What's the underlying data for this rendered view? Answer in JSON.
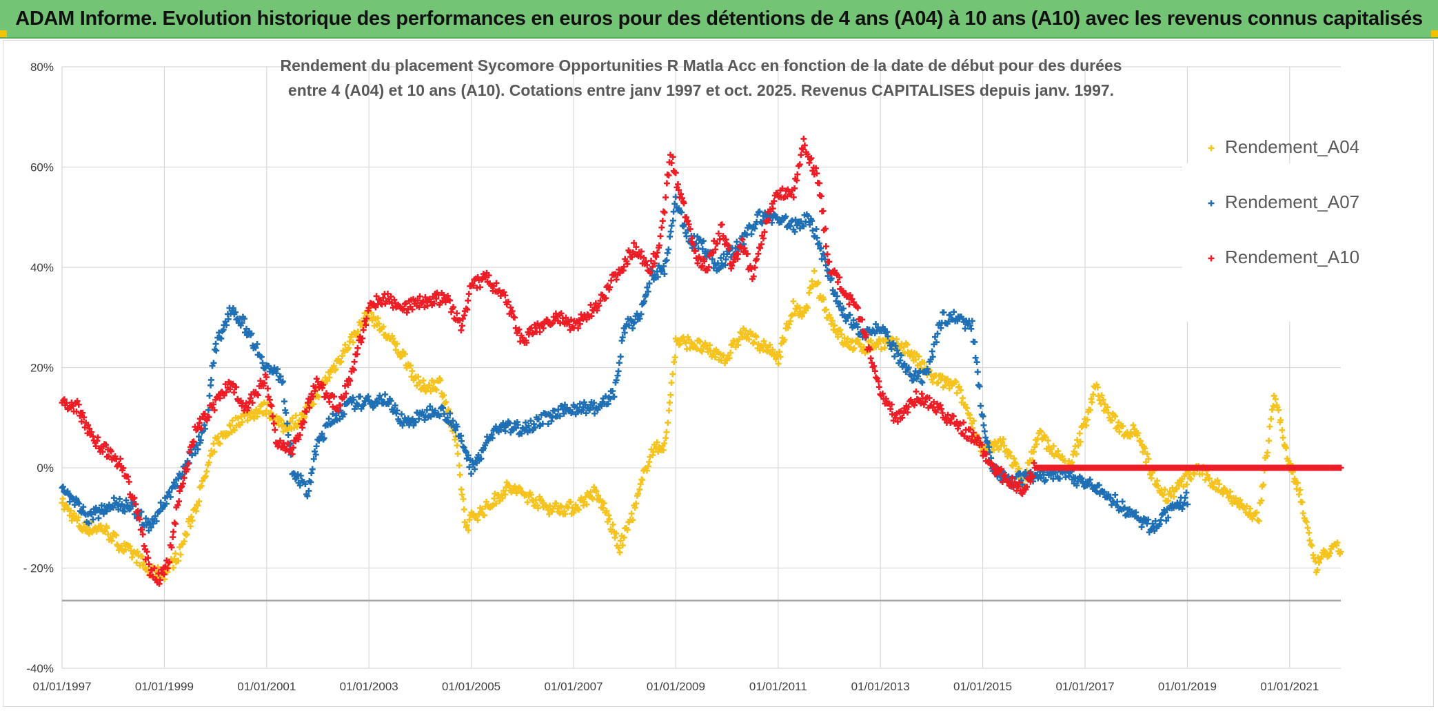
{
  "banner": {
    "title": "ADAM Informe. Evolution historique des performances en euros pour des détentions de 4 ans (A04) à 10 ans (A10) avec les revenus connus capitalisés"
  },
  "colors": {
    "A04": "#f6c21c",
    "A07": "#1f6fb5",
    "A10": "#ee1c25",
    "grid": "#d9d9d9",
    "banner": "#74c476"
  },
  "chart_data": {
    "type": "scatter",
    "title_line1": "Rendement du placement Sycomore Opportunities R Matla Acc en fonction de la date de début pour des durées",
    "title_line2": "entre 4 (A04) et 10 ans (A10). Cotations entre janv 1997 et oct. 2025. Revenus CAPITALISES depuis janv. 1997.",
    "xlabel": "",
    "ylabel": "",
    "x_range": [
      1997.0,
      2022.0
    ],
    "ylim": [
      -40,
      80
    ],
    "y_ticks": [
      80,
      60,
      40,
      20,
      0,
      -20,
      -40
    ],
    "y_tick_labels": [
      "80%",
      "60%",
      "40%",
      "20%",
      "0%",
      "- 20%",
      "-40%"
    ],
    "x_ticks": [
      1997,
      1999,
      2001,
      2003,
      2005,
      2007,
      2009,
      2011,
      2013,
      2015,
      2017,
      2019,
      2021
    ],
    "x_tick_labels": [
      "01/01/1997",
      "01/01/1999",
      "01/01/2001",
      "01/01/2003",
      "01/01/2005",
      "01/01/2007",
      "01/01/2009",
      "01/01/2011",
      "01/01/2013",
      "01/01/2015",
      "01/01/2017",
      "01/01/2019",
      "01/01/2021"
    ],
    "reference_line": -26.5,
    "legend": {
      "position": "top-right",
      "entries": [
        "Rendement_A04",
        "Rendement_A07",
        "Rendement_A10"
      ]
    },
    "series": [
      {
        "name": "Rendement_A04",
        "color": "#f6c21c",
        "x": [
          1997.0,
          1997.4,
          1997.8,
          1998.2,
          1998.5,
          1998.7,
          1999.0,
          1999.3,
          1999.7,
          2000.0,
          2000.5,
          2001.0,
          2001.3,
          2001.7,
          2002.0,
          2002.5,
          2003.0,
          2003.3,
          2003.7,
          2004.0,
          2004.4,
          2004.7,
          2004.9,
          2005.0,
          2005.3,
          2005.7,
          2006.0,
          2006.5,
          2007.0,
          2007.4,
          2007.6,
          2007.9,
          2008.2,
          2008.5,
          2008.8,
          2009.0,
          2009.3,
          2009.7,
          2010.0,
          2010.3,
          2010.6,
          2011.0,
          2011.3,
          2011.5,
          2011.7,
          2012.0,
          2012.3,
          2012.7,
          2013.0,
          2013.5,
          2014.0,
          2014.5,
          2014.8,
          2015.0,
          2015.4,
          2015.8,
          2016.1,
          2016.4,
          2016.7,
          2017.0,
          2017.2,
          2017.5,
          2017.8,
          2018.0,
          2018.3,
          2018.6,
          2018.9,
          2019.2,
          2019.5,
          2019.8,
          2020.1,
          2020.4,
          2020.7,
          2021.0,
          2021.2,
          2021.5,
          2021.7,
          2022.0
        ],
        "values": [
          -7,
          -12,
          -12,
          -16,
          -18,
          -21,
          -21,
          -17,
          -5,
          5,
          10,
          12,
          8,
          10,
          15,
          23,
          31,
          27,
          22,
          16,
          17,
          5,
          -12,
          -10,
          -8,
          -4,
          -5,
          -8,
          -8,
          -5,
          -8,
          -16,
          -8,
          3,
          5,
          25,
          25,
          23,
          22,
          27,
          25,
          22,
          32,
          30,
          38,
          30,
          25,
          24,
          25,
          24,
          18,
          16,
          9,
          3,
          5,
          -3,
          7,
          3,
          0,
          9,
          16,
          10,
          7,
          8,
          -1,
          -6,
          -3,
          0,
          -3,
          -5,
          -8,
          -10,
          15,
          0,
          -5,
          -20,
          -17,
          -16
        ]
      },
      {
        "name": "Rendement_A07",
        "color": "#1f6fb5",
        "x": [
          1997.0,
          1997.5,
          1998.0,
          1998.4,
          1998.7,
          1999.0,
          1999.5,
          1999.8,
          2000.0,
          2000.3,
          2000.6,
          2001.0,
          2001.3,
          2001.5,
          2001.8,
          2002.0,
          2002.3,
          2002.7,
          2003.0,
          2003.3,
          2003.7,
          2004.0,
          2004.3,
          2004.6,
          2004.9,
          2005.0,
          2005.5,
          2006.0,
          2006.5,
          2007.0,
          2007.5,
          2007.8,
          2008.0,
          2008.3,
          2008.5,
          2008.8,
          2009.0,
          2009.3,
          2009.5,
          2009.8,
          2010.0,
          2010.3,
          2010.6,
          2011.0,
          2011.3,
          2011.6,
          2011.8,
          2012.0,
          2012.3,
          2012.7,
          2013.0,
          2013.3,
          2013.6,
          2013.9,
          2014.2,
          2014.5,
          2014.8,
          2015.0,
          2015.2,
          2015.5,
          2015.8,
          2016.0,
          2016.5,
          2017.0,
          2017.5,
          2018.0,
          2018.3,
          2018.5,
          2018.8,
          2019.0
        ],
        "values": [
          -4,
          -10,
          -7,
          -8,
          -12,
          -7,
          2,
          8,
          24,
          32,
          28,
          20,
          18,
          0,
          -5,
          5,
          10,
          13,
          13,
          14,
          9,
          10,
          12,
          10,
          3,
          0,
          8,
          8,
          10,
          12,
          12,
          15,
          28,
          30,
          38,
          40,
          53,
          45,
          45,
          40,
          42,
          45,
          50,
          50,
          48,
          50,
          45,
          38,
          30,
          27,
          28,
          23,
          18,
          18,
          30,
          30,
          28,
          10,
          0,
          -3,
          -2,
          -2,
          -1,
          -3,
          -6,
          -10,
          -12,
          -10,
          -8,
          -6
        ]
      },
      {
        "name": "Rendement_A10",
        "color": "#ee1c25",
        "x": [
          1997.0,
          1997.3,
          1997.6,
          1998.0,
          1998.2,
          1998.5,
          1998.7,
          1998.9,
          1999.1,
          1999.3,
          1999.6,
          2000.0,
          2000.3,
          2000.6,
          2001.0,
          2001.2,
          2001.5,
          2001.8,
          2002.0,
          2002.4,
          2002.7,
          2003.0,
          2003.3,
          2003.7,
          2004.0,
          2004.5,
          2004.8,
          2005.0,
          2005.3,
          2005.7,
          2006.0,
          2006.3,
          2006.7,
          2007.0,
          2007.5,
          2007.8,
          2008.2,
          2008.5,
          2008.7,
          2008.9,
          2009.0,
          2009.2,
          2009.4,
          2009.6,
          2009.9,
          2010.1,
          2010.3,
          2010.5,
          2010.8,
          2011.0,
          2011.3,
          2011.5,
          2011.8,
          2012.0,
          2012.3,
          2012.6,
          2013.0,
          2013.3,
          2013.7,
          2014.0,
          2014.3,
          2014.6,
          2014.9,
          2015.1,
          2015.3,
          2015.6,
          2015.8,
          2016.0,
          2016.5,
          2017.0,
          2017.5,
          2018.0,
          2018.5,
          2019.0,
          2019.5,
          2020.0,
          2020.5,
          2021.0,
          2021.5,
          2022.0
        ],
        "values": [
          13,
          12,
          6,
          2,
          0,
          -10,
          -20,
          -22,
          -18,
          -5,
          7,
          13,
          17,
          12,
          18,
          5,
          3,
          12,
          17,
          12,
          20,
          32,
          34,
          32,
          33,
          34,
          28,
          36,
          38,
          33,
          25,
          28,
          30,
          28,
          33,
          38,
          44,
          40,
          45,
          63,
          58,
          50,
          42,
          40,
          48,
          40,
          45,
          38,
          50,
          55,
          55,
          65,
          57,
          40,
          35,
          30,
          15,
          10,
          14,
          13,
          10,
          8,
          5,
          2,
          -1,
          -3,
          -5,
          0,
          0,
          0,
          0,
          0,
          0,
          0,
          0,
          0,
          0,
          0,
          0,
          0
        ]
      }
    ]
  }
}
